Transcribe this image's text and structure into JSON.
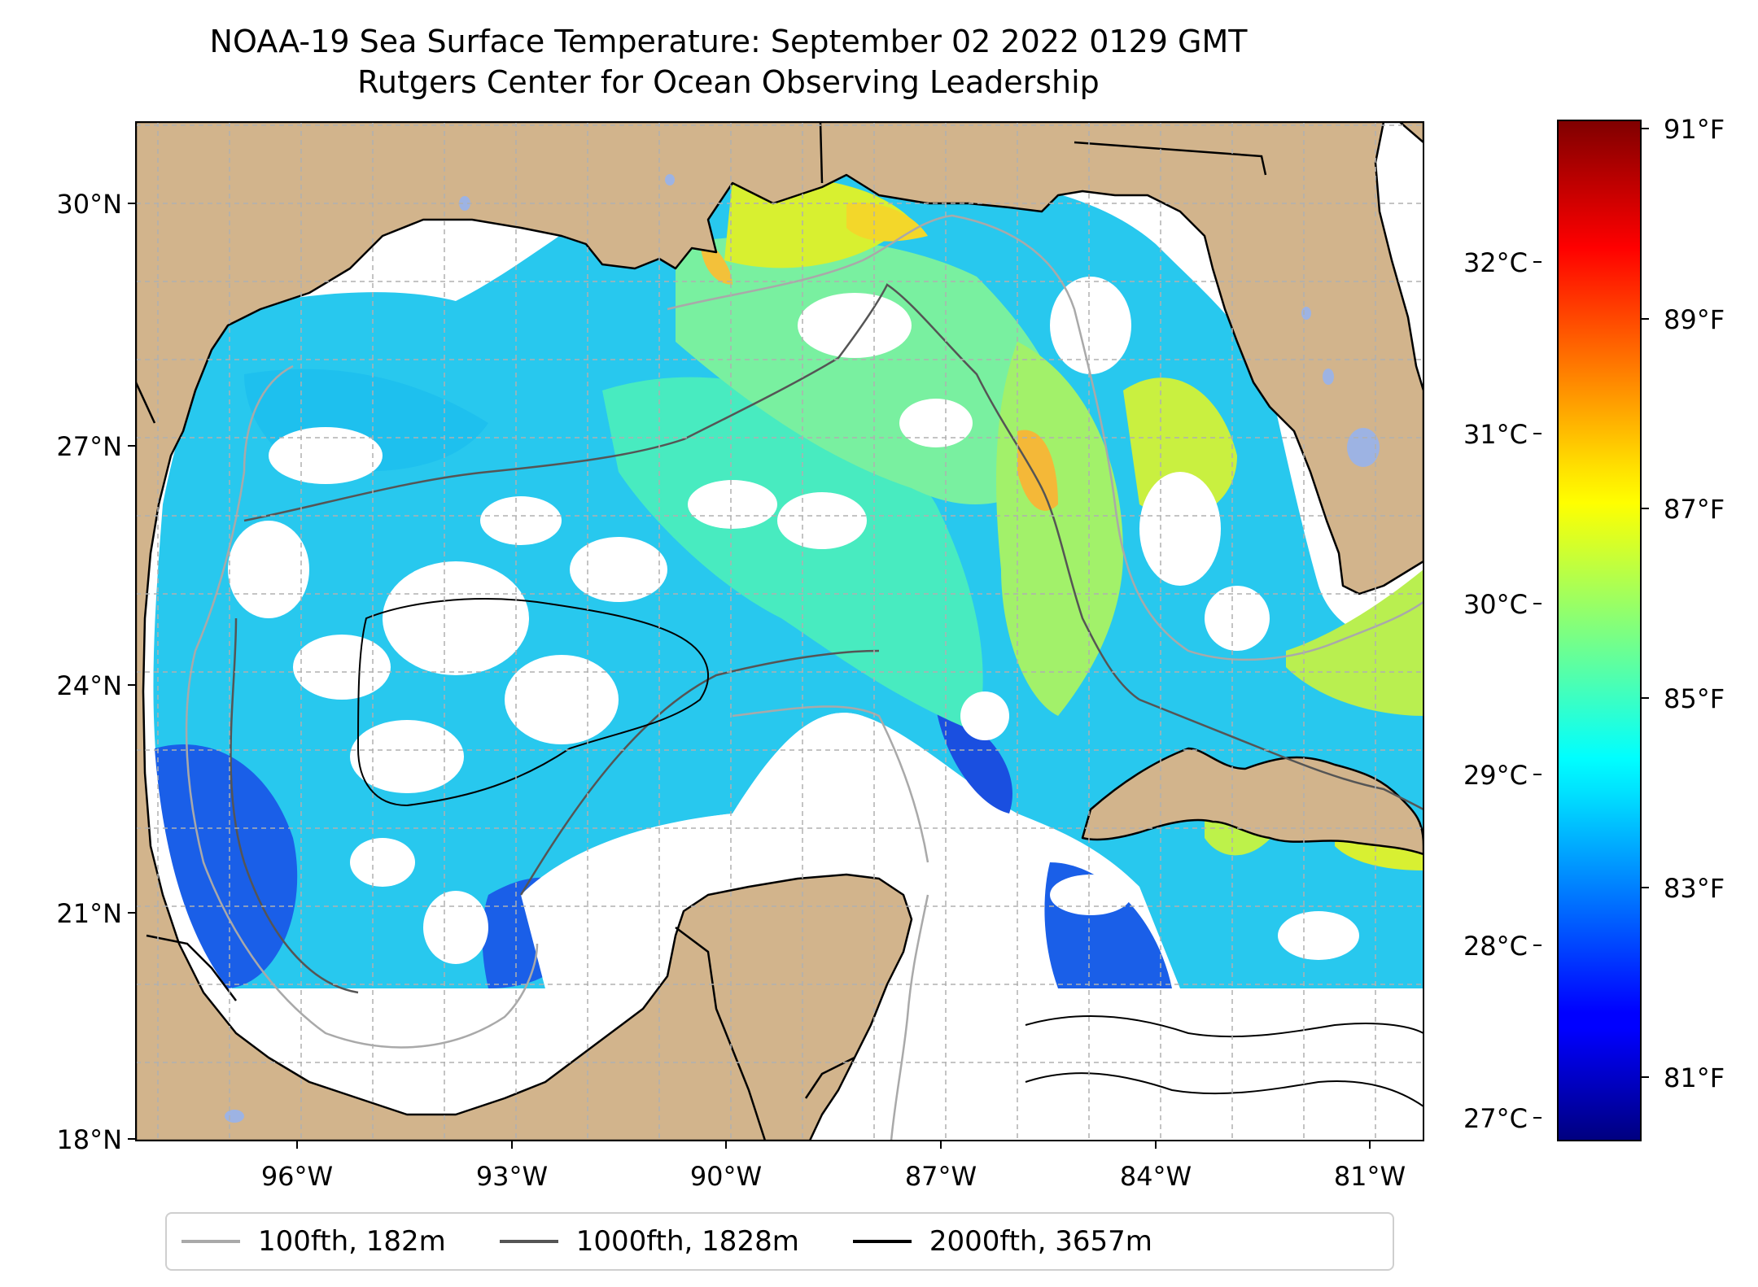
{
  "title_line1": "NOAA-19 Sea Surface Temperature: September 02 2022 0129 GMT",
  "title_line2": "Rutgers Center for Ocean Observing Leadership",
  "map": {
    "lon_range": [
      -98,
      -80.4
    ],
    "lat_range": [
      18,
      31.05
    ],
    "lat_ticks": [
      "30°N",
      "27°N",
      "24°N",
      "21°N",
      "18°N"
    ],
    "lon_ticks": [
      "96°W",
      "93°W",
      "90°W",
      "87°W",
      "84°W",
      "81°W"
    ],
    "colors": {
      "land": "#d2b48c",
      "water_bodies": "#9db3e3",
      "gridlines": "#b0b0b0",
      "no_data": "#ffffff"
    }
  },
  "colorbar": {
    "colormap": "jet",
    "range_f": [
      79.9,
      91.3
    ],
    "celsius_labels": [
      "32°C",
      "31°C",
      "30°C",
      "29°C",
      "28°C",
      "27°C"
    ],
    "fahrenheit_labels": [
      "91°F",
      "89°F",
      "87°F",
      "85°F",
      "83°F",
      "81°F"
    ]
  },
  "legend": [
    {
      "label": "100fth, 182m",
      "color": "#a9a9a9"
    },
    {
      "label": "1000fth, 1828m",
      "color": "#555555"
    },
    {
      "label": "2000fth, 3657m",
      "color": "#000000"
    }
  ]
}
